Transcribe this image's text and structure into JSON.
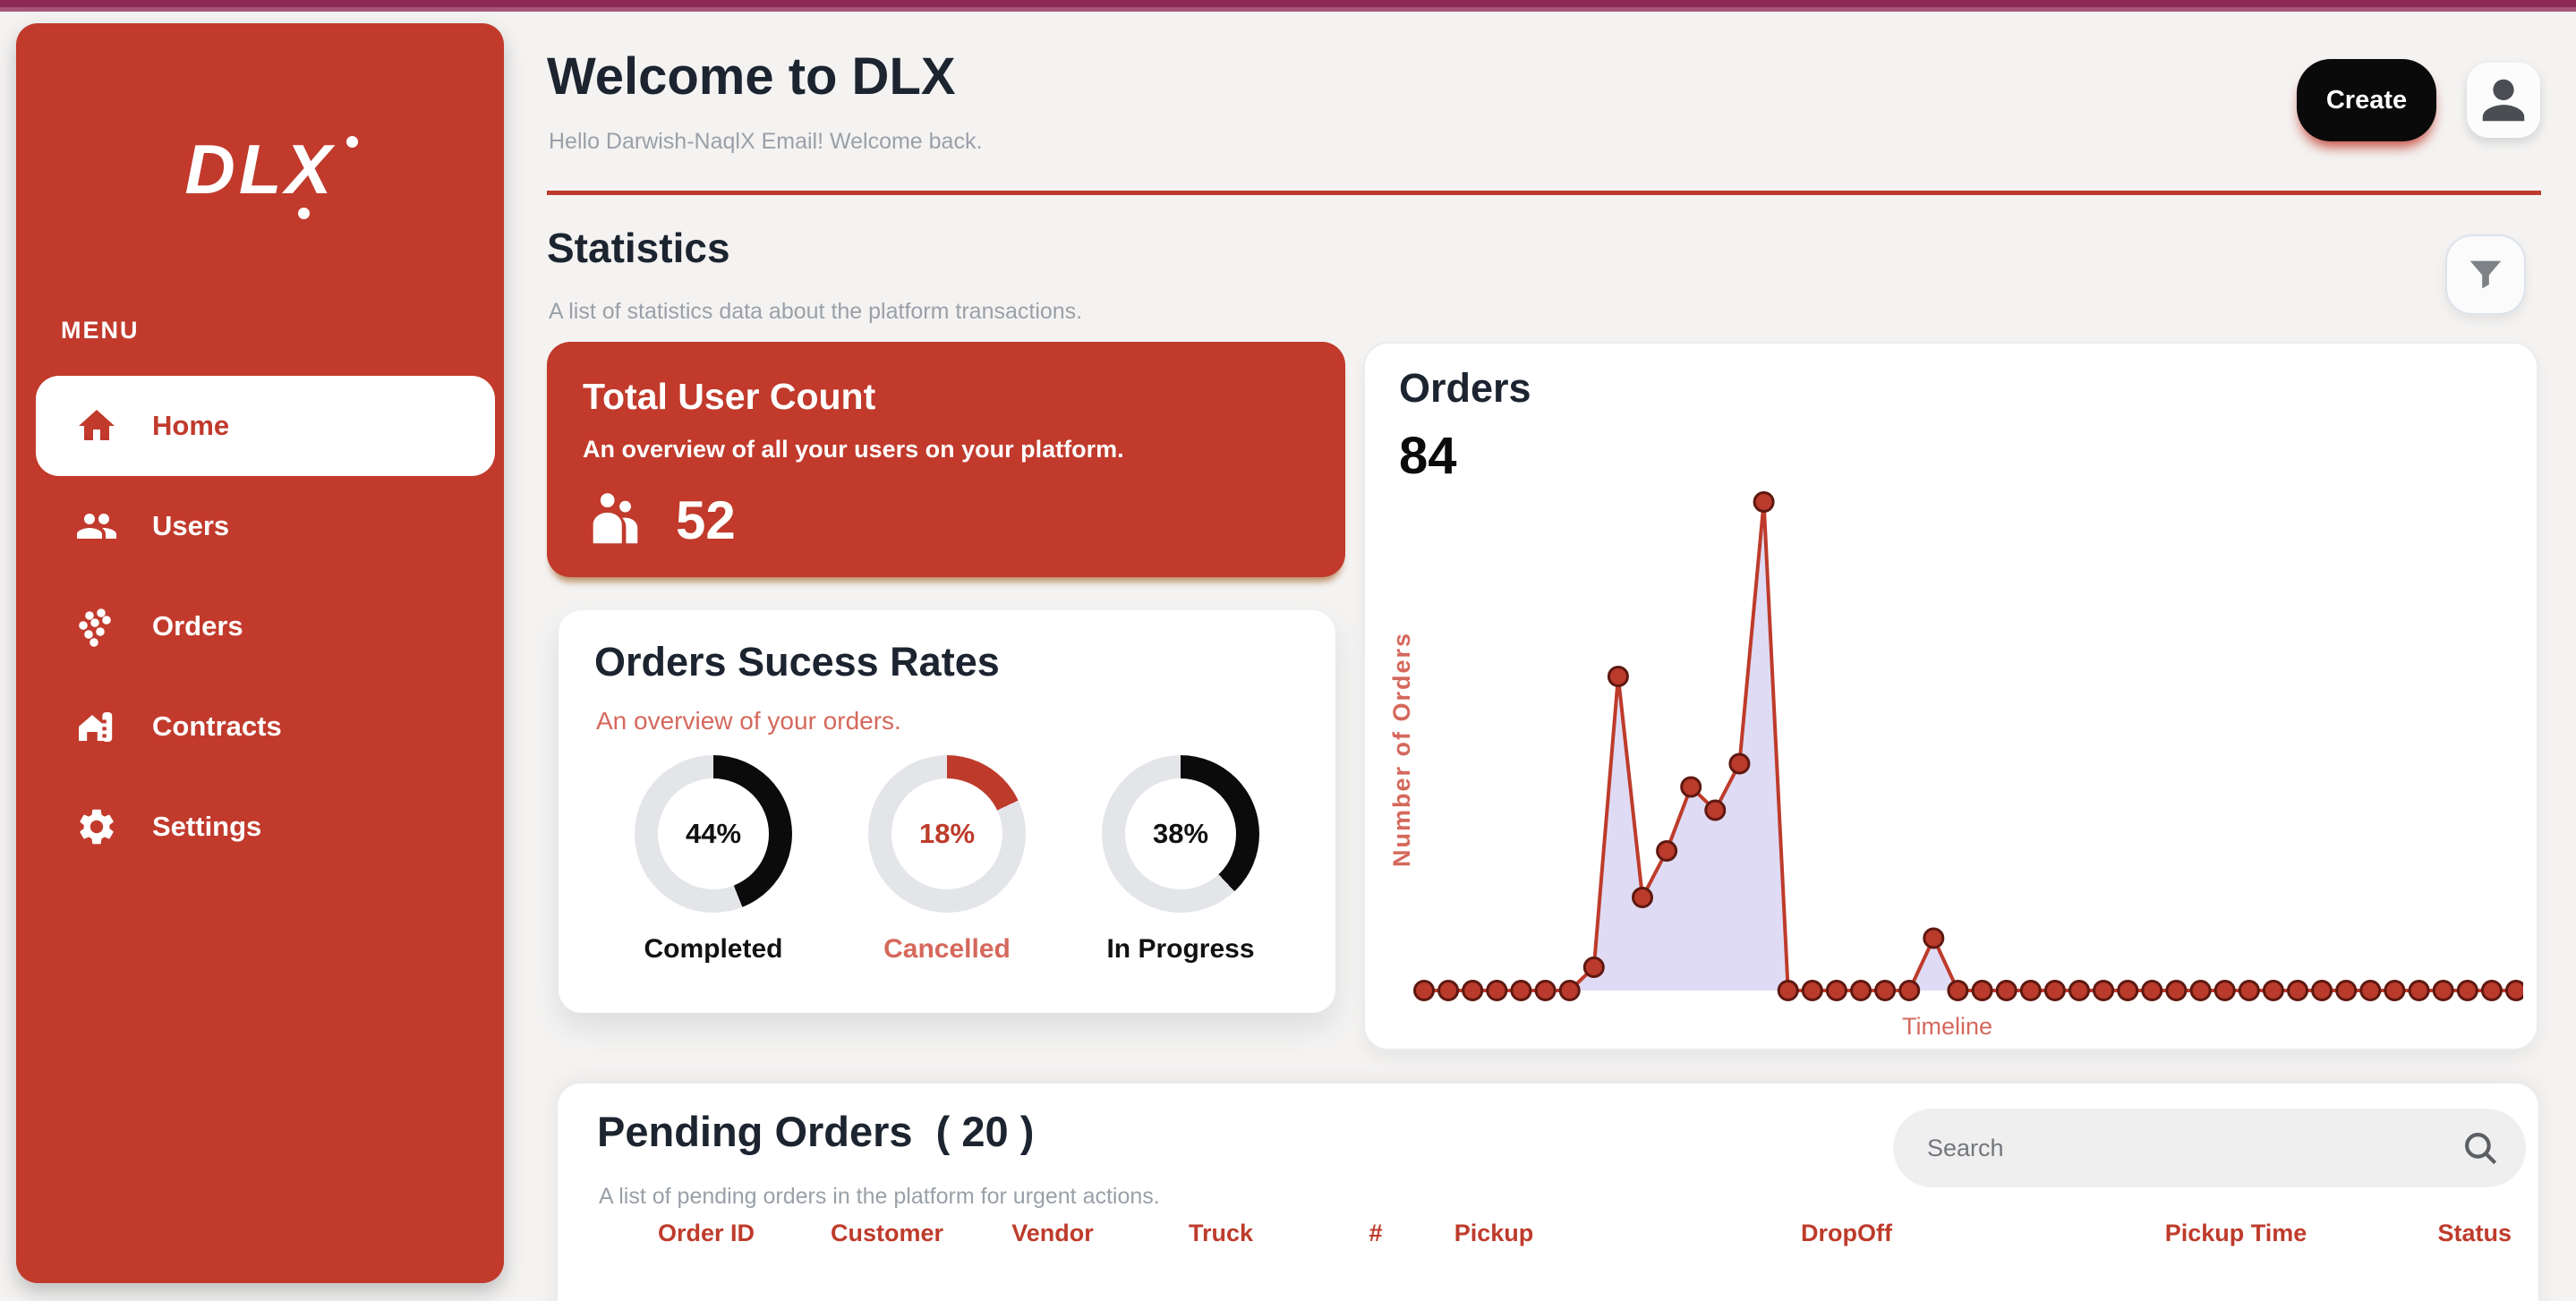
{
  "sidebar": {
    "logo": "DLX",
    "menu_label": "MENU",
    "items": [
      {
        "label": "Home",
        "icon": "home-icon",
        "active": true
      },
      {
        "label": "Users",
        "icon": "users-icon",
        "active": false
      },
      {
        "label": "Orders",
        "icon": "orders-dots-icon",
        "active": false
      },
      {
        "label": "Contracts",
        "icon": "contracts-icon",
        "active": false
      },
      {
        "label": "Settings",
        "icon": "gear-icon",
        "active": false
      }
    ]
  },
  "header": {
    "title": "Welcome to DLX",
    "subtitle": "Hello Darwish-NaqlX Email! Welcome back.",
    "create_label": "Create"
  },
  "statistics": {
    "title": "Statistics",
    "subtitle": "A list of statistics data about the platform transactions."
  },
  "user_count_card": {
    "title": "Total User Count",
    "subtitle": "An overview of all your users on your platform.",
    "count": "52"
  },
  "success_card": {
    "title": "Orders Sucess Rates",
    "subtitle": "An overview of your orders."
  },
  "orders_card": {
    "title": "Orders",
    "total": "84",
    "ylabel": "Number of Orders",
    "xlabel": "Timeline"
  },
  "pending": {
    "title": "Pending Orders  ( 20 )",
    "subtitle": "A list of pending orders in the platform for urgent actions.",
    "search_placeholder": "Search",
    "columns": [
      "Order ID",
      "Customer",
      "Vendor",
      "Truck",
      "#",
      "Pickup",
      "DropOff",
      "Pickup Time",
      "Status"
    ]
  },
  "chart_data": [
    {
      "type": "area",
      "title": "Orders",
      "total": 84,
      "xlabel": "Timeline",
      "ylabel": "Number of Orders",
      "values": [
        0,
        0,
        0,
        0,
        0,
        0,
        0,
        4,
        54,
        16,
        24,
        35,
        31,
        39,
        84,
        0,
        0,
        0,
        0,
        0,
        0,
        9,
        0,
        0,
        0,
        0,
        0,
        0,
        0,
        0,
        0,
        0,
        0,
        0,
        0,
        0,
        0,
        0,
        0,
        0,
        0,
        0,
        0,
        0,
        0,
        0
      ],
      "ylim": [
        0,
        84
      ],
      "grid": false,
      "line_color": "#BE3B2B",
      "dot_color": "#BA3A2B",
      "dot_stroke": "#5E1810",
      "fill_color": "#DBD7F3",
      "label_color": "#D5685C"
    },
    {
      "type": "donut",
      "title": "Orders Sucess Rates",
      "track_color": "#E3E5E9",
      "items": [
        {
          "label": "Completed",
          "value_pct": 44,
          "arc_color": "#0B0B0B",
          "text_color": "#111111",
          "label_color": "#111111"
        },
        {
          "label": "Cancelled",
          "value_pct": 18,
          "arc_color": "#BE3B2B",
          "text_color": "#BE3B2B",
          "label_color": "#D5685C"
        },
        {
          "label": "In Progress",
          "value_pct": 38,
          "arc_color": "#0B0B0B",
          "text_color": "#111111",
          "label_color": "#111111"
        }
      ]
    }
  ],
  "colors": {
    "topbar_dark": "#8E2956",
    "topbar_light": "#A85479",
    "accent_red": "#C13A2C",
    "heading": "#1C2430",
    "muted_gray": "#9AA0A8",
    "salmon": "#D5685C",
    "table_header_red": "#BE3B2B",
    "page_bg": "#F4F3F2",
    "create_button_bg": "#0A0A0A"
  }
}
